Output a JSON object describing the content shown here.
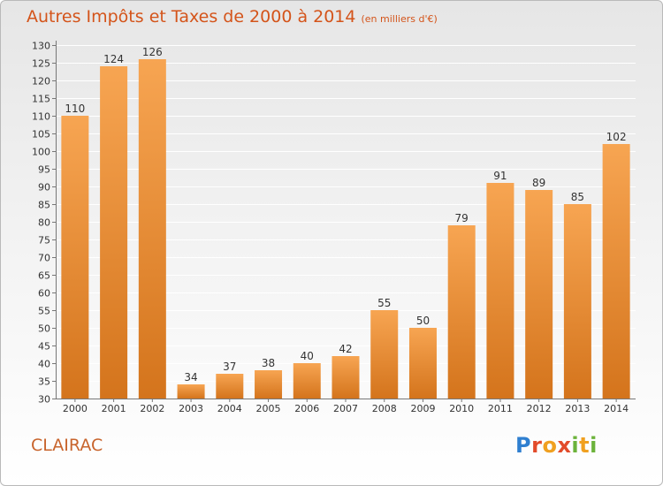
{
  "title": {
    "main": "Autres Impôts et Taxes de 2000 à 2014",
    "unit": "(en milliers d'€)"
  },
  "commune": "CLAIRAC",
  "logo": {
    "letters": [
      "P",
      "r",
      "o",
      "x",
      "i",
      "t",
      "i"
    ]
  },
  "colors": {
    "bar_top": "#f7a552",
    "bar_bottom": "#d4741c",
    "title": "#d4541a",
    "grid": "#ffffff"
  },
  "chart_data": {
    "type": "bar",
    "categories": [
      "2000",
      "2001",
      "2002",
      "2003",
      "2004",
      "2005",
      "2006",
      "2007",
      "2008",
      "2009",
      "2010",
      "2011",
      "2012",
      "2013",
      "2014"
    ],
    "values": [
      110,
      124,
      126,
      34,
      37,
      38,
      40,
      42,
      55,
      50,
      79,
      91,
      89,
      85,
      102
    ],
    "ylim": [
      30,
      130
    ],
    "ytick_step": 5,
    "grid": true
  }
}
